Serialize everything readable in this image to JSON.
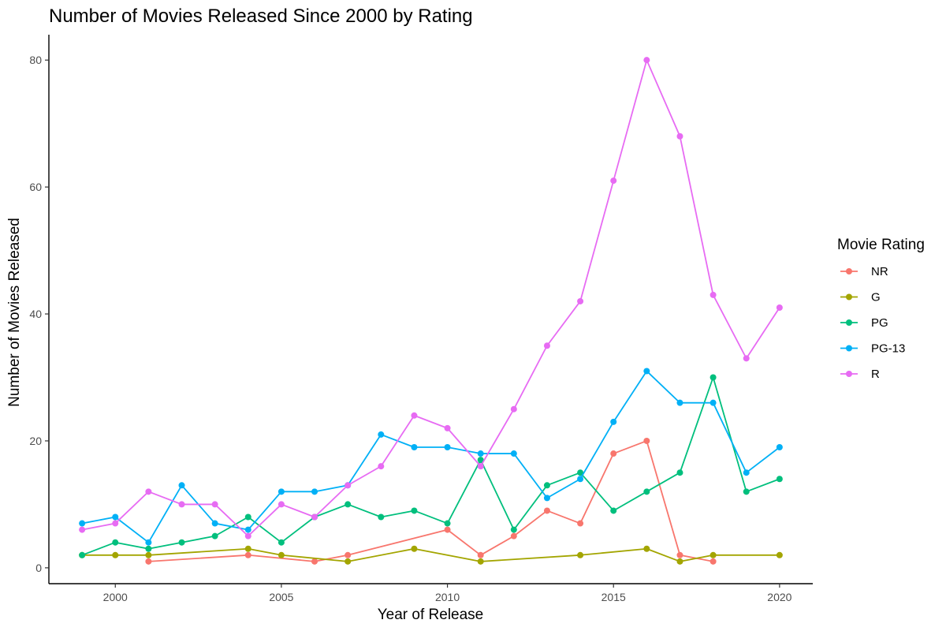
{
  "chart_data": {
    "type": "line",
    "title": "Number of Movies Released Since 2000 by Rating",
    "xlabel": "Year of Release",
    "ylabel": "Number of Movies Released",
    "xlim": [
      1998,
      2021
    ],
    "ylim": [
      -2.5,
      84
    ],
    "xticks": [
      2000,
      2005,
      2010,
      2015,
      2020
    ],
    "yticks": [
      0,
      20,
      40,
      60,
      80
    ],
    "grid": false,
    "legend": {
      "title": "Movie Rating",
      "placement": "right"
    },
    "series": [
      {
        "name": "NR",
        "color": "#F8766D",
        "points": [
          [
            2001,
            1
          ],
          [
            2004,
            2
          ],
          [
            2006,
            1
          ],
          [
            2007,
            2
          ],
          [
            2010,
            6
          ],
          [
            2011,
            2
          ],
          [
            2012,
            5
          ],
          [
            2013,
            9
          ],
          [
            2014,
            7
          ],
          [
            2015,
            18
          ],
          [
            2016,
            20
          ],
          [
            2017,
            2
          ],
          [
            2018,
            1
          ]
        ]
      },
      {
        "name": "G",
        "color": "#A3A500",
        "points": [
          [
            1999,
            2
          ],
          [
            2000,
            2
          ],
          [
            2001,
            2
          ],
          [
            2004,
            3
          ],
          [
            2005,
            2
          ],
          [
            2007,
            1
          ],
          [
            2009,
            3
          ],
          [
            2011,
            1
          ],
          [
            2014,
            2
          ],
          [
            2016,
            3
          ],
          [
            2017,
            1
          ],
          [
            2018,
            2
          ],
          [
            2020,
            2
          ]
        ]
      },
      {
        "name": "PG",
        "color": "#00BF7D",
        "points": [
          [
            1999,
            2
          ],
          [
            2000,
            4
          ],
          [
            2001,
            3
          ],
          [
            2002,
            4
          ],
          [
            2003,
            5
          ],
          [
            2004,
            8
          ],
          [
            2005,
            4
          ],
          [
            2006,
            8
          ],
          [
            2007,
            10
          ],
          [
            2008,
            8
          ],
          [
            2009,
            9
          ],
          [
            2010,
            7
          ],
          [
            2011,
            17
          ],
          [
            2012,
            6
          ],
          [
            2013,
            13
          ],
          [
            2014,
            15
          ],
          [
            2015,
            9
          ],
          [
            2016,
            12
          ],
          [
            2017,
            15
          ],
          [
            2018,
            30
          ],
          [
            2019,
            12
          ],
          [
            2020,
            14
          ]
        ]
      },
      {
        "name": "PG-13",
        "color": "#00B0F6",
        "points": [
          [
            1999,
            7
          ],
          [
            2000,
            8
          ],
          [
            2001,
            4
          ],
          [
            2002,
            13
          ],
          [
            2003,
            7
          ],
          [
            2004,
            6
          ],
          [
            2005,
            12
          ],
          [
            2006,
            12
          ],
          [
            2007,
            13
          ],
          [
            2008,
            21
          ],
          [
            2009,
            19
          ],
          [
            2010,
            19
          ],
          [
            2011,
            18
          ],
          [
            2012,
            18
          ],
          [
            2013,
            11
          ],
          [
            2014,
            14
          ],
          [
            2015,
            23
          ],
          [
            2016,
            31
          ],
          [
            2017,
            26
          ],
          [
            2018,
            26
          ],
          [
            2019,
            15
          ],
          [
            2020,
            19
          ]
        ]
      },
      {
        "name": "R",
        "color": "#E76BF3",
        "points": [
          [
            1999,
            6
          ],
          [
            2000,
            7
          ],
          [
            2001,
            12
          ],
          [
            2002,
            10
          ],
          [
            2003,
            10
          ],
          [
            2004,
            5
          ],
          [
            2005,
            10
          ],
          [
            2006,
            8
          ],
          [
            2007,
            13
          ],
          [
            2008,
            16
          ],
          [
            2009,
            24
          ],
          [
            2010,
            22
          ],
          [
            2011,
            16
          ],
          [
            2012,
            25
          ],
          [
            2013,
            35
          ],
          [
            2014,
            42
          ],
          [
            2015,
            61
          ],
          [
            2016,
            80
          ],
          [
            2017,
            68
          ],
          [
            2018,
            43
          ],
          [
            2019,
            33
          ],
          [
            2020,
            41
          ]
        ]
      }
    ]
  }
}
